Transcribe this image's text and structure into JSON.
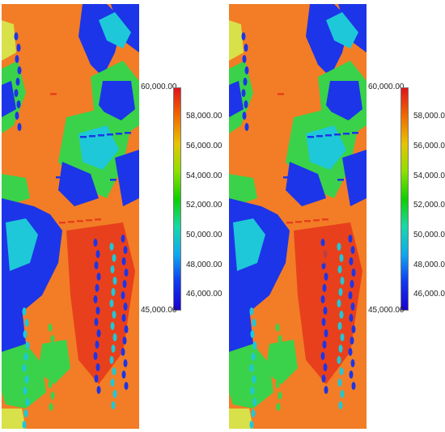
{
  "colorbar": {
    "max_label": "60,000.00",
    "min_label": "45,000.00",
    "tick_labels": [
      "58,000.00",
      "56,000.00",
      "54,000.00",
      "52,000.00",
      "50,000.00",
      "48,000.00",
      "46,000.00"
    ],
    "stops": [
      "#e0141c",
      "#f06a00",
      "#e6c400",
      "#8ee000",
      "#10d000",
      "#18d8a8",
      "#10a8f0",
      "#1038f0",
      "#1a00d0"
    ]
  },
  "map_colors": {
    "base": "#f27d26",
    "high": "#e8401c",
    "blue": "#1c35e8",
    "cyan": "#1ec8d8",
    "green": "#3ad24a",
    "yellow": "#d8e04a"
  }
}
